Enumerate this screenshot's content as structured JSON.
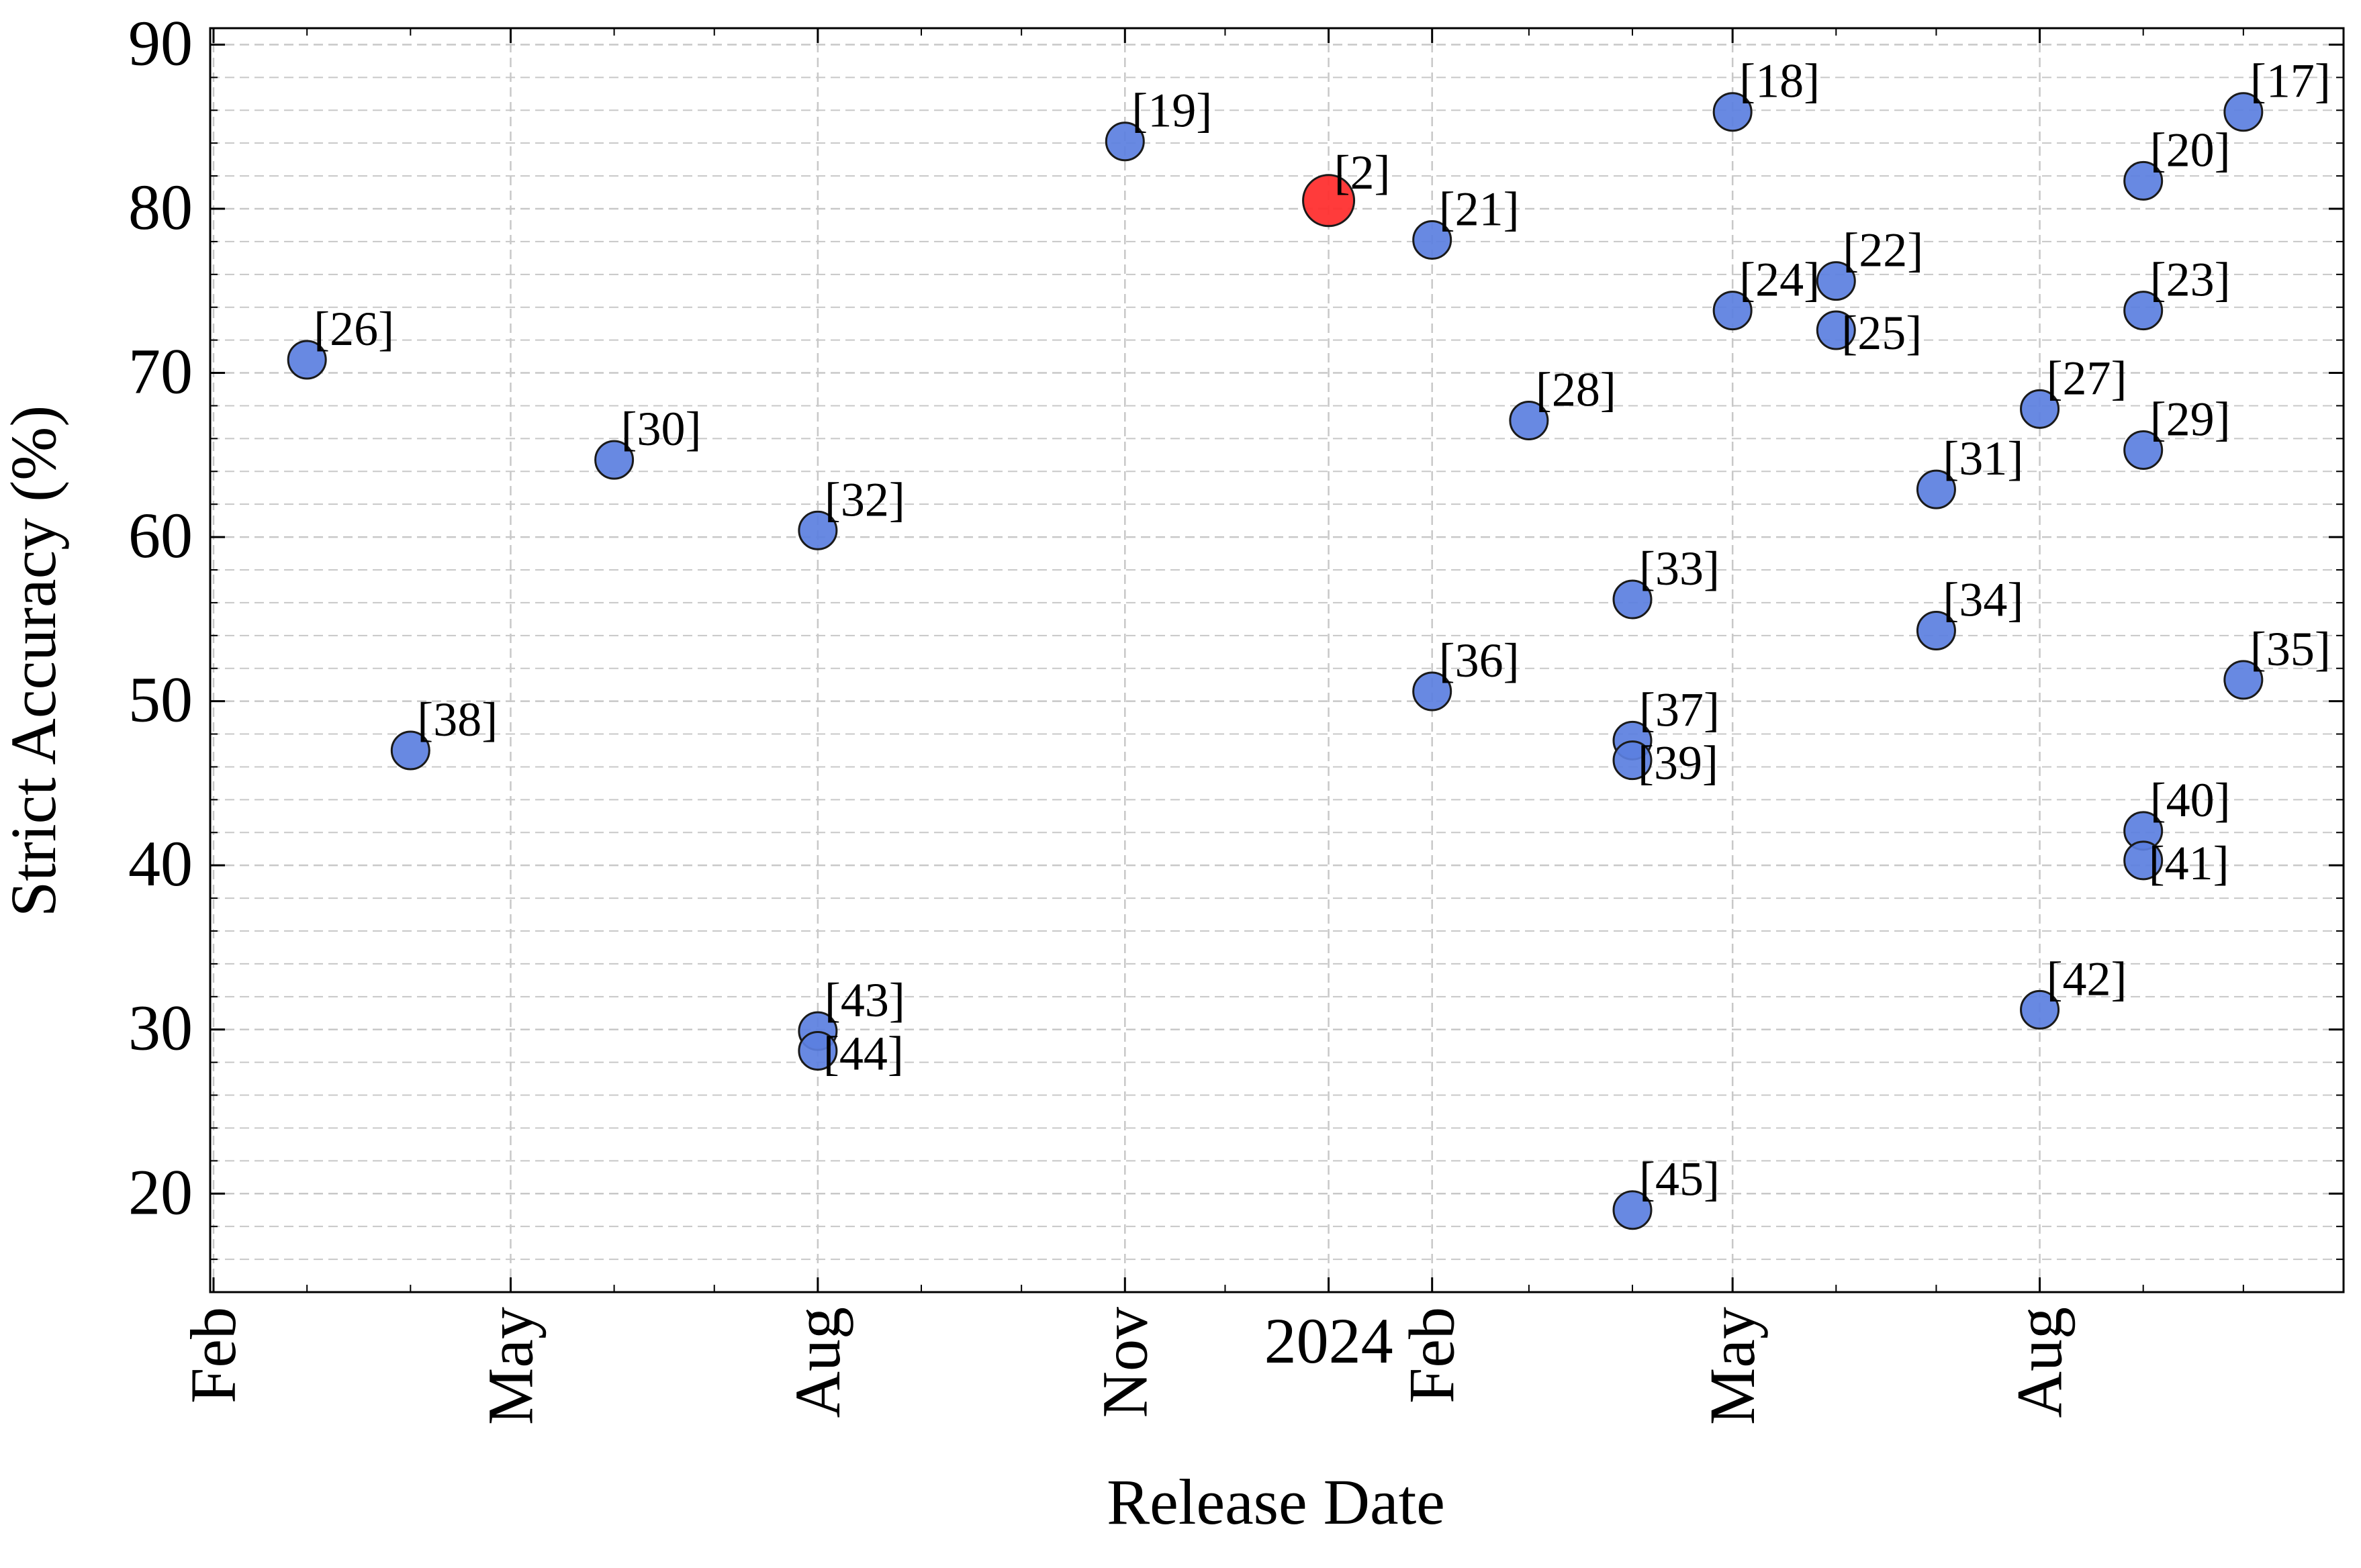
{
  "chart_data": {
    "type": "scatter",
    "title": "",
    "xlabel": "Release Date",
    "ylabel": "Strict Accuracy (%)",
    "x_scale": "date",
    "xlim": [
      "2023-01-31",
      "2024-10-31"
    ],
    "ylim": [
      14,
      91
    ],
    "grid": true,
    "x_ticks": [
      {
        "date": "2023-02-01",
        "label": "Feb"
      },
      {
        "date": "2023-05-01",
        "label": "May"
      },
      {
        "date": "2023-08-01",
        "label": "Aug"
      },
      {
        "date": "2023-11-01",
        "label": "Nov"
      },
      {
        "date": "2024-01-01",
        "label": "2024"
      },
      {
        "date": "2024-02-01",
        "label": "Feb"
      },
      {
        "date": "2024-05-01",
        "label": "May"
      },
      {
        "date": "2024-08-01",
        "label": "Aug"
      }
    ],
    "y_ticks": [
      20,
      30,
      40,
      50,
      60,
      70,
      80,
      90
    ],
    "points": [
      {
        "label": "[17]",
        "x": "2024-10-01",
        "y": 85.9,
        "highlight": false,
        "label_pos": "right"
      },
      {
        "label": "[18]",
        "x": "2024-05-01",
        "y": 85.9,
        "highlight": false,
        "label_pos": "right"
      },
      {
        "label": "[19]",
        "x": "2023-11-01",
        "y": 84.1,
        "highlight": false,
        "label_pos": "right"
      },
      {
        "label": "[2]",
        "x": "2024-01-01",
        "y": 80.5,
        "highlight": true,
        "label_pos": "right"
      },
      {
        "label": "[20]",
        "x": "2024-09-01",
        "y": 81.7,
        "highlight": false,
        "label_pos": "right"
      },
      {
        "label": "[21]",
        "x": "2024-02-01",
        "y": 78.1,
        "highlight": false,
        "label_pos": "right"
      },
      {
        "label": "[22]",
        "x": "2024-06-01",
        "y": 75.6,
        "highlight": false,
        "label_pos": "right"
      },
      {
        "label": "[23]",
        "x": "2024-09-01",
        "y": 73.8,
        "highlight": false,
        "label_pos": "right"
      },
      {
        "label": "[24]",
        "x": "2024-05-01",
        "y": 73.8,
        "highlight": false,
        "label_pos": "right"
      },
      {
        "label": "[25]",
        "x": "2024-06-01",
        "y": 72.6,
        "highlight": false,
        "label_pos": "right-low"
      },
      {
        "label": "[26]",
        "x": "2023-03-01",
        "y": 70.8,
        "highlight": false,
        "label_pos": "right"
      },
      {
        "label": "[27]",
        "x": "2024-08-01",
        "y": 67.8,
        "highlight": false,
        "label_pos": "right"
      },
      {
        "label": "[28]",
        "x": "2024-03-01",
        "y": 67.1,
        "highlight": false,
        "label_pos": "right"
      },
      {
        "label": "[29]",
        "x": "2024-09-01",
        "y": 65.3,
        "highlight": false,
        "label_pos": "right"
      },
      {
        "label": "[30]",
        "x": "2023-06-01",
        "y": 64.7,
        "highlight": false,
        "label_pos": "right"
      },
      {
        "label": "[31]",
        "x": "2024-07-01",
        "y": 62.9,
        "highlight": false,
        "label_pos": "right"
      },
      {
        "label": "[32]",
        "x": "2023-08-01",
        "y": 60.4,
        "highlight": false,
        "label_pos": "right"
      },
      {
        "label": "[33]",
        "x": "2024-04-01",
        "y": 56.2,
        "highlight": false,
        "label_pos": "right"
      },
      {
        "label": "[34]",
        "x": "2024-07-01",
        "y": 54.3,
        "highlight": false,
        "label_pos": "right"
      },
      {
        "label": "[35]",
        "x": "2024-10-01",
        "y": 51.3,
        "highlight": false,
        "label_pos": "right"
      },
      {
        "label": "[36]",
        "x": "2024-02-01",
        "y": 50.6,
        "highlight": false,
        "label_pos": "right"
      },
      {
        "label": "[37]",
        "x": "2024-04-01",
        "y": 47.6,
        "highlight": false,
        "label_pos": "right"
      },
      {
        "label": "[38]",
        "x": "2023-04-01",
        "y": 47.0,
        "highlight": false,
        "label_pos": "right"
      },
      {
        "label": "[39]",
        "x": "2024-04-01",
        "y": 46.4,
        "highlight": false,
        "label_pos": "right-low"
      },
      {
        "label": "[40]",
        "x": "2024-09-01",
        "y": 42.1,
        "highlight": false,
        "label_pos": "right"
      },
      {
        "label": "[41]",
        "x": "2024-09-01",
        "y": 40.3,
        "highlight": false,
        "label_pos": "right-low"
      },
      {
        "label": "[42]",
        "x": "2024-08-01",
        "y": 31.2,
        "highlight": false,
        "label_pos": "right"
      },
      {
        "label": "[43]",
        "x": "2023-08-01",
        "y": 29.9,
        "highlight": false,
        "label_pos": "right"
      },
      {
        "label": "[44]",
        "x": "2023-08-01",
        "y": 28.7,
        "highlight": false,
        "label_pos": "right-low"
      },
      {
        "label": "[45]",
        "x": "2024-04-01",
        "y": 19.0,
        "highlight": false,
        "label_pos": "right"
      }
    ],
    "colors": {
      "point": "#5b7fe0",
      "highlight": "#ff3030",
      "point_edge": "#1a1a1a",
      "grid": "#c8c8c8"
    }
  }
}
